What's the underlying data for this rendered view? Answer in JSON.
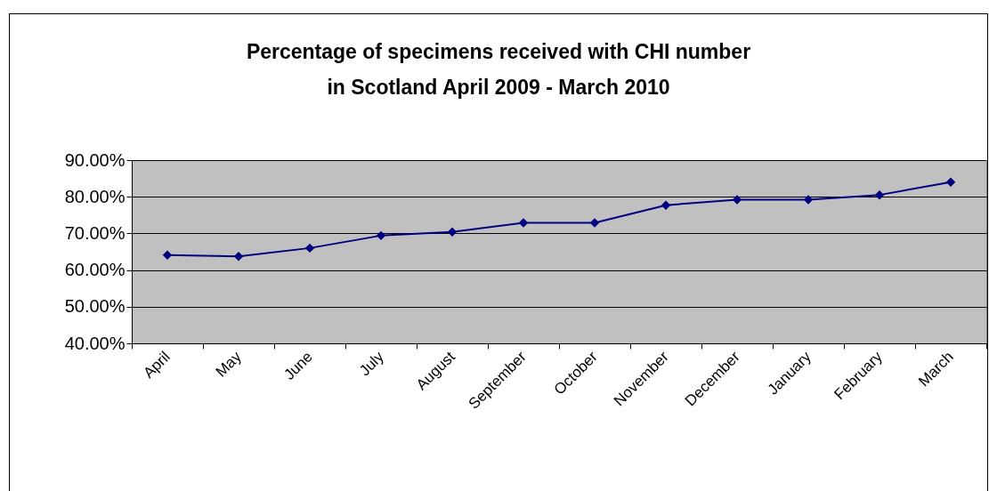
{
  "chart_data": {
    "type": "line",
    "title": "Percentage of specimens received with CHI number in Scotland April 2009 - March 2010",
    "categories": [
      "April",
      "May",
      "June",
      "July",
      "August",
      "September",
      "October",
      "November",
      "December",
      "January",
      "February",
      "March"
    ],
    "series": [
      {
        "color": "#000080",
        "values": [
          64.1,
          63.7,
          66.0,
          69.4,
          70.4,
          72.9,
          72.9,
          77.7,
          79.2,
          79.2,
          80.5,
          84.0
        ]
      }
    ],
    "ylim": [
      40,
      90
    ],
    "yticks": [
      {
        "value": 40,
        "label": "40.00%"
      },
      {
        "value": 50,
        "label": "50.00%"
      },
      {
        "value": 60,
        "label": "60.00%"
      },
      {
        "value": 70,
        "label": "70.00%"
      },
      {
        "value": 80,
        "label": "80.00%"
      },
      {
        "value": 90,
        "label": "90.00%"
      }
    ],
    "grid": "y",
    "marker": "diamond",
    "line_style": "solid"
  }
}
